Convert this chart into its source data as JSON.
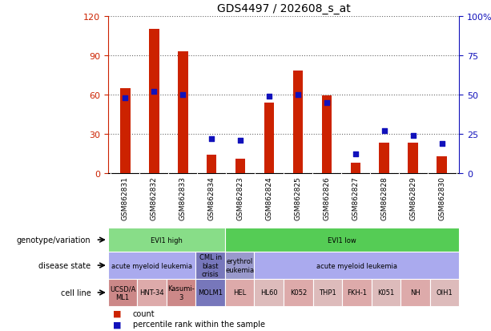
{
  "title": "GDS4497 / 202608_s_at",
  "samples": [
    "GSM862831",
    "GSM862832",
    "GSM862833",
    "GSM862834",
    "GSM862823",
    "GSM862824",
    "GSM862825",
    "GSM862826",
    "GSM862827",
    "GSM862828",
    "GSM862829",
    "GSM862830"
  ],
  "counts": [
    65,
    110,
    93,
    14,
    11,
    54,
    78,
    59,
    8,
    23,
    23,
    13
  ],
  "percentile_ranks": [
    48,
    52,
    50,
    22,
    21,
    49,
    50,
    45,
    12,
    27,
    24,
    19
  ],
  "ylim_left": [
    0,
    120
  ],
  "ylim_right": [
    0,
    100
  ],
  "yticks_left": [
    0,
    30,
    60,
    90,
    120
  ],
  "yticks_right": [
    0,
    25,
    50,
    75,
    100
  ],
  "bar_color": "#CC2200",
  "dot_color": "#1111BB",
  "bar_width": 0.35,
  "title_fontsize": 10,
  "genotype_row": {
    "label": "genotype/variation",
    "groups": [
      {
        "text": "EVI1 high",
        "start": 0,
        "end": 4,
        "color": "#88DD88"
      },
      {
        "text": "EVI1 low",
        "start": 4,
        "end": 12,
        "color": "#55CC55"
      }
    ]
  },
  "disease_row": {
    "label": "disease state",
    "groups": [
      {
        "text": "acute myeloid leukemia",
        "start": 0,
        "end": 3,
        "color": "#AAAAEE"
      },
      {
        "text": "CML in\nblast\ncrisis",
        "start": 3,
        "end": 4,
        "color": "#7777BB"
      },
      {
        "text": "erythrol\neukemia",
        "start": 4,
        "end": 5,
        "color": "#9999CC"
      },
      {
        "text": "acute myeloid leukemia",
        "start": 5,
        "end": 12,
        "color": "#AAAAEE"
      }
    ]
  },
  "cell_row": {
    "label": "cell line",
    "groups": [
      {
        "text": "UCSD/A\nML1",
        "start": 0,
        "end": 1,
        "color": "#CC8888"
      },
      {
        "text": "HNT-34",
        "start": 1,
        "end": 2,
        "color": "#DDAAAA"
      },
      {
        "text": "Kasumi-\n3",
        "start": 2,
        "end": 3,
        "color": "#CC8888"
      },
      {
        "text": "MOLM1",
        "start": 3,
        "end": 4,
        "color": "#7777BB"
      },
      {
        "text": "HEL",
        "start": 4,
        "end": 5,
        "color": "#DDAAAA"
      },
      {
        "text": "HL60",
        "start": 5,
        "end": 6,
        "color": "#DDBBBB"
      },
      {
        "text": "K052",
        "start": 6,
        "end": 7,
        "color": "#DDAAAA"
      },
      {
        "text": "THP1",
        "start": 7,
        "end": 8,
        "color": "#DDBBBB"
      },
      {
        "text": "FKH-1",
        "start": 8,
        "end": 9,
        "color": "#DDAAAA"
      },
      {
        "text": "K051",
        "start": 9,
        "end": 10,
        "color": "#DDBBBB"
      },
      {
        "text": "NH",
        "start": 10,
        "end": 11,
        "color": "#DDAAAA"
      },
      {
        "text": "OIH1",
        "start": 11,
        "end": 12,
        "color": "#DDBBBB"
      }
    ]
  },
  "legend_count_color": "#CC2200",
  "legend_pct_color": "#1111BB",
  "axis_color_left": "#CC2200",
  "axis_color_right": "#1111BB",
  "xtick_bg_color": "#CCCCCC",
  "chart_bg_color": "#FFFFFF",
  "fig_bg_color": "#FFFFFF"
}
